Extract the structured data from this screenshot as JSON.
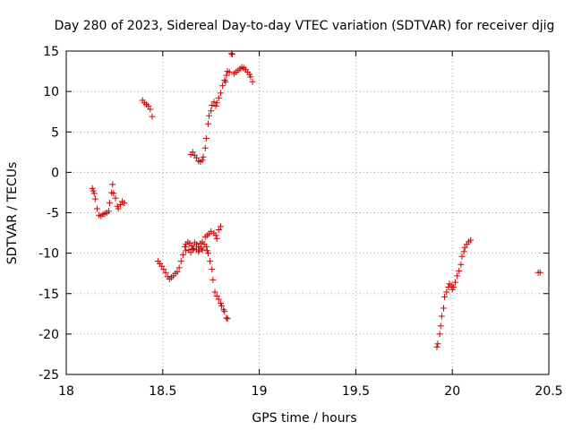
{
  "chart_data": {
    "type": "scatter",
    "title": "Day 280 of 2023, Sidereal Day-to-day VTEC variation (SDTVAR) for receiver djig",
    "xlabel": "GPS time / hours",
    "ylabel": "SDTVAR / TECUs",
    "xlim": [
      18,
      20.5
    ],
    "ylim": [
      -25,
      15
    ],
    "xticks": [
      "18",
      "18.5",
      "19",
      "19.5",
      "20",
      "20.5"
    ],
    "yticks": [
      "15",
      "10",
      "5",
      "0",
      "-5",
      "-10",
      "-15",
      "-20",
      "-25"
    ],
    "grid": true,
    "marker": "+",
    "series": [
      {
        "name": "SDTVAR",
        "color": "#cc0000",
        "points": [
          [
            18.135,
            -2.0
          ],
          [
            18.14,
            -2.3
          ],
          [
            18.145,
            -2.6
          ],
          [
            18.15,
            -3.3
          ],
          [
            18.16,
            -4.5
          ],
          [
            18.17,
            -5.3
          ],
          [
            18.18,
            -5.4
          ],
          [
            18.19,
            -5.2
          ],
          [
            18.2,
            -5.1
          ],
          [
            18.21,
            -5.0
          ],
          [
            18.22,
            -4.8
          ],
          [
            18.225,
            -3.8
          ],
          [
            18.235,
            -2.5
          ],
          [
            18.24,
            -1.5
          ],
          [
            18.245,
            -2.6
          ],
          [
            18.255,
            -3.2
          ],
          [
            18.265,
            -4.2
          ],
          [
            18.27,
            -4.5
          ],
          [
            18.28,
            -4.0
          ],
          [
            18.29,
            -3.6
          ],
          [
            18.3,
            -3.8
          ],
          [
            18.395,
            8.9
          ],
          [
            18.405,
            8.6
          ],
          [
            18.415,
            8.4
          ],
          [
            18.425,
            8.2
          ],
          [
            18.435,
            7.8
          ],
          [
            18.445,
            6.9
          ],
          [
            18.475,
            -11.0
          ],
          [
            18.485,
            -11.3
          ],
          [
            18.495,
            -11.6
          ],
          [
            18.505,
            -12.0
          ],
          [
            18.515,
            -12.4
          ],
          [
            18.525,
            -12.9
          ],
          [
            18.535,
            -13.2
          ],
          [
            18.545,
            -13.0
          ],
          [
            18.555,
            -12.8
          ],
          [
            18.565,
            -12.5
          ],
          [
            18.575,
            -12.3
          ],
          [
            18.585,
            -11.8
          ],
          [
            18.595,
            -11.0
          ],
          [
            18.605,
            -10.2
          ],
          [
            18.615,
            -9.2
          ],
          [
            18.62,
            -8.9
          ],
          [
            18.63,
            -8.6
          ],
          [
            18.64,
            -8.8
          ],
          [
            18.65,
            -9.1
          ],
          [
            18.66,
            -9.4
          ],
          [
            18.665,
            -8.7
          ],
          [
            18.675,
            -8.9
          ],
          [
            18.685,
            -9.2
          ],
          [
            18.69,
            -9.6
          ],
          [
            18.695,
            -8.8
          ],
          [
            18.7,
            -9.4
          ],
          [
            18.705,
            -8.6
          ],
          [
            18.715,
            -8.9
          ],
          [
            18.725,
            -9.2
          ],
          [
            18.73,
            -9.7
          ],
          [
            18.62,
            -9.7
          ],
          [
            18.635,
            -9.6
          ],
          [
            18.645,
            -9.9
          ],
          [
            18.655,
            -9.5
          ],
          [
            18.675,
            -9.6
          ],
          [
            18.685,
            -9.8
          ],
          [
            18.705,
            -9.6
          ],
          [
            18.72,
            -8.0
          ],
          [
            18.73,
            -7.8
          ],
          [
            18.74,
            -7.6
          ],
          [
            18.75,
            -7.3
          ],
          [
            18.765,
            -7.5
          ],
          [
            18.775,
            -7.8
          ],
          [
            18.78,
            -8.2
          ],
          [
            18.79,
            -7.1
          ],
          [
            18.8,
            -6.7
          ],
          [
            18.735,
            -10.0
          ],
          [
            18.745,
            -11.0
          ],
          [
            18.755,
            -12.0
          ],
          [
            18.76,
            -13.3
          ],
          [
            18.77,
            -14.8
          ],
          [
            18.78,
            -15.3
          ],
          [
            18.79,
            -15.7
          ],
          [
            18.8,
            -16.2
          ],
          [
            18.805,
            -16.5
          ],
          [
            18.815,
            -17.0
          ],
          [
            18.82,
            -17.2
          ],
          [
            18.83,
            -18.0
          ],
          [
            18.835,
            -18.1
          ],
          [
            18.645,
            2.2
          ],
          [
            18.655,
            2.5
          ],
          [
            18.665,
            2.1
          ],
          [
            18.675,
            1.8
          ],
          [
            18.685,
            1.4
          ],
          [
            18.695,
            1.3
          ],
          [
            18.705,
            1.5
          ],
          [
            18.71,
            1.9
          ],
          [
            18.72,
            3.0
          ],
          [
            18.725,
            4.2
          ],
          [
            18.735,
            6.0
          ],
          [
            18.74,
            7.0
          ],
          [
            18.75,
            7.6
          ],
          [
            18.755,
            8.3
          ],
          [
            18.765,
            8.7
          ],
          [
            18.775,
            8.2
          ],
          [
            18.78,
            8.6
          ],
          [
            18.79,
            9.2
          ],
          [
            18.8,
            9.8
          ],
          [
            18.81,
            10.7
          ],
          [
            18.82,
            11.4
          ],
          [
            18.825,
            11.2
          ],
          [
            18.83,
            12.0
          ],
          [
            18.835,
            12.5
          ],
          [
            18.845,
            12.4
          ],
          [
            18.855,
            14.7
          ],
          [
            18.86,
            14.6
          ],
          [
            18.87,
            12.2
          ],
          [
            18.88,
            12.4
          ],
          [
            18.89,
            12.6
          ],
          [
            18.9,
            12.8
          ],
          [
            18.91,
            13.0
          ],
          [
            18.92,
            12.9
          ],
          [
            18.93,
            12.7
          ],
          [
            18.94,
            12.4
          ],
          [
            18.95,
            12.1
          ],
          [
            18.955,
            11.8
          ],
          [
            18.965,
            11.2
          ],
          [
            19.92,
            -21.6
          ],
          [
            19.925,
            -21.2
          ],
          [
            19.935,
            -20.0
          ],
          [
            19.94,
            -19.0
          ],
          [
            19.945,
            -17.8
          ],
          [
            19.955,
            -16.8
          ],
          [
            19.96,
            -15.4
          ],
          [
            19.97,
            -14.8
          ],
          [
            19.98,
            -14.2
          ],
          [
            19.985,
            -13.8
          ],
          [
            19.995,
            -14.0
          ],
          [
            20.0,
            -14.5
          ],
          [
            20.005,
            -14.2
          ],
          [
            20.015,
            -13.6
          ],
          [
            20.025,
            -12.8
          ],
          [
            20.035,
            -12.2
          ],
          [
            20.045,
            -11.4
          ],
          [
            20.05,
            -10.4
          ],
          [
            20.06,
            -9.8
          ],
          [
            20.065,
            -9.3
          ],
          [
            20.075,
            -8.9
          ],
          [
            20.085,
            -8.6
          ],
          [
            20.095,
            -8.4
          ],
          [
            20.445,
            -12.4
          ],
          [
            20.455,
            -12.4
          ]
        ]
      }
    ]
  }
}
